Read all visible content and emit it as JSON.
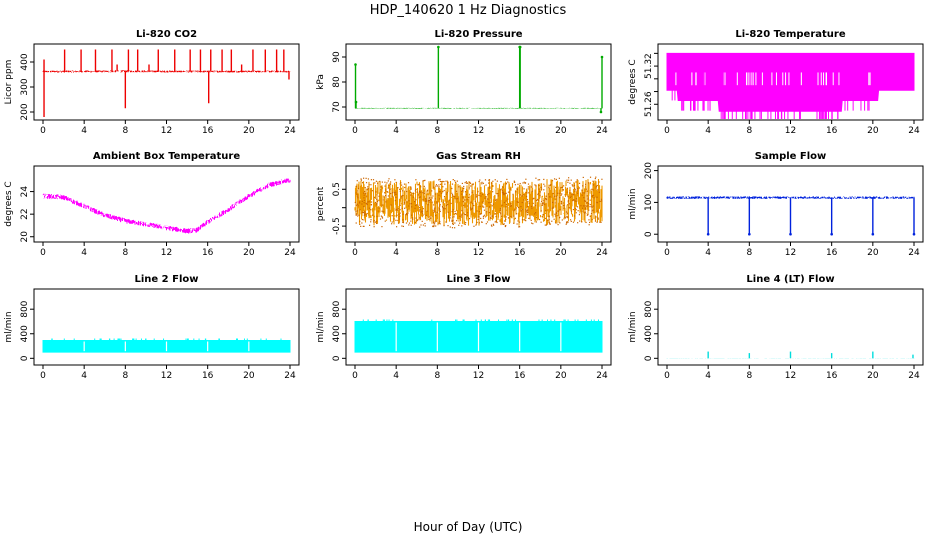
{
  "figure": {
    "title": "HDP_140620  1 Hz Diagnostics",
    "xlabel": "Hour of Day (UTC)"
  },
  "chart_data": [
    {
      "id": "co2",
      "type": "line",
      "title": "Li-820 CO2",
      "ylabel": "Licor ppm",
      "color": "#ee0000",
      "xlim": [
        0,
        24
      ],
      "ylim": [
        180,
        460
      ],
      "xticks": [
        0,
        4,
        8,
        12,
        16,
        20,
        24
      ],
      "yticks": [
        200,
        300,
        400
      ],
      "ytick_labels": [
        "200",
        "300",
        "400"
      ],
      "baseline": [
        [
          0,
          362
        ],
        [
          4,
          362
        ],
        [
          8,
          363
        ],
        [
          12,
          362
        ],
        [
          16,
          362
        ],
        [
          20,
          362
        ],
        [
          24,
          362
        ]
      ],
      "noise": 8,
      "spikes": [
        [
          0.1,
          180
        ],
        [
          0.1,
          410
        ],
        [
          2.1,
          450
        ],
        [
          3.7,
          450
        ],
        [
          5.1,
          450
        ],
        [
          6.7,
          450
        ],
        [
          7.2,
          390
        ],
        [
          8.0,
          215
        ],
        [
          8.3,
          450
        ],
        [
          9.2,
          450
        ],
        [
          10.3,
          390
        ],
        [
          11.2,
          450
        ],
        [
          12.8,
          450
        ],
        [
          14.3,
          450
        ],
        [
          15.3,
          450
        ],
        [
          16.1,
          235
        ],
        [
          16.3,
          450
        ],
        [
          17.4,
          450
        ],
        [
          18.3,
          450
        ],
        [
          19.3,
          390
        ],
        [
          20.4,
          450
        ],
        [
          21.6,
          450
        ],
        [
          22.7,
          450
        ],
        [
          23.4,
          450
        ],
        [
          23.9,
          330
        ]
      ]
    },
    {
      "id": "pressure",
      "type": "line",
      "title": "Li-820 Pressure",
      "ylabel": "kPa",
      "color": "#00aa00",
      "xlim": [
        0,
        24
      ],
      "ylim": [
        66,
        94
      ],
      "xticks": [
        0,
        4,
        8,
        12,
        16,
        20,
        24
      ],
      "yticks": [
        70,
        80,
        90
      ],
      "ytick_labels": [
        "70",
        "80",
        "90"
      ],
      "baseline": [
        [
          0,
          69.5
        ],
        [
          24,
          69.5
        ]
      ],
      "noise": 0.3,
      "spikes": [
        [
          0.05,
          87
        ],
        [
          0.1,
          72
        ],
        [
          8.1,
          94
        ],
        [
          16.0,
          94
        ],
        [
          16.05,
          94
        ],
        [
          24.0,
          90
        ],
        [
          23.9,
          68
        ]
      ]
    },
    {
      "id": "licor_temp",
      "type": "band",
      "title": "Li-820 Temperature",
      "ylabel": "degrees C",
      "color": "#ff00ff",
      "xlim": [
        0,
        24
      ],
      "ylim": [
        51.24,
        51.35
      ],
      "xticks": [
        0,
        4,
        8,
        12,
        16,
        20,
        24
      ],
      "yticks": [
        51.26,
        51.28,
        51.3,
        51.32,
        51.34
      ],
      "ytick_labels": [
        "51.26",
        "",
        "",
        "51.32",
        ""
      ],
      "low": [
        [
          0,
          51.282
        ],
        [
          0.8,
          51.282
        ],
        [
          1.0,
          51.266
        ],
        [
          4.5,
          51.266
        ],
        [
          5.0,
          51.249
        ],
        [
          16.5,
          51.249
        ],
        [
          17.0,
          51.266
        ],
        [
          20.3,
          51.266
        ],
        [
          20.5,
          51.282
        ],
        [
          24,
          51.282
        ]
      ],
      "high": [
        [
          0,
          51.34
        ],
        [
          24,
          51.34
        ]
      ],
      "stripes": true
    },
    {
      "id": "ambient_temp",
      "type": "line",
      "title": "Ambient Box Temperature",
      "ylabel": "degrees C",
      "color": "#ff00ff",
      "xlim": [
        0,
        24
      ],
      "ylim": [
        19.8,
        26.0
      ],
      "xticks": [
        0,
        4,
        8,
        12,
        16,
        20,
        24
      ],
      "yticks": [
        20,
        22,
        24
      ],
      "ytick_labels": [
        "20",
        "22",
        "24"
      ],
      "baseline": [
        [
          0,
          23.6
        ],
        [
          2,
          23.5
        ],
        [
          4,
          22.7
        ],
        [
          6,
          21.9
        ],
        [
          8,
          21.4
        ],
        [
          10,
          21.1
        ],
        [
          12,
          20.8
        ],
        [
          14,
          20.5
        ],
        [
          15,
          20.6
        ],
        [
          16,
          21.3
        ],
        [
          18,
          22.4
        ],
        [
          20,
          23.6
        ],
        [
          22,
          24.6
        ],
        [
          24,
          25.0
        ]
      ],
      "noise": 0.45,
      "spikes": []
    },
    {
      "id": "rh",
      "type": "line",
      "title": "Gas Stream RH",
      "ylabel": "percent",
      "color": "#ee9900",
      "dots": true,
      "xlim": [
        0,
        24
      ],
      "ylim": [
        -0.85,
        1.05
      ],
      "xticks": [
        0,
        4,
        8,
        12,
        16,
        20,
        24
      ],
      "yticks": [
        -0.5,
        0.0,
        0.5
      ],
      "ytick_labels": [
        "-0.5",
        "",
        "0.5"
      ],
      "baseline": [
        [
          0,
          0.15
        ],
        [
          12,
          0.1
        ],
        [
          24,
          0.2
        ]
      ],
      "noise": 1.25,
      "spikes": []
    },
    {
      "id": "sample_flow",
      "type": "line",
      "title": "Sample Flow",
      "ylabel": "ml/min",
      "color": "#0022dd",
      "xlim": [
        0,
        24
      ],
      "ylim": [
        -15,
        205
      ],
      "xticks": [
        0,
        4,
        8,
        12,
        16,
        20,
        24
      ],
      "yticks": [
        0,
        100,
        200
      ],
      "ytick_labels": [
        "0",
        "100",
        "200"
      ],
      "baseline": [
        [
          0,
          115
        ],
        [
          24,
          115
        ]
      ],
      "noise": 8,
      "spikes": [
        [
          4.0,
          0
        ],
        [
          8.0,
          0
        ],
        [
          12.0,
          0
        ],
        [
          16.0,
          0
        ],
        [
          20.0,
          0
        ],
        [
          24.0,
          0
        ]
      ]
    },
    {
      "id": "line2",
      "type": "band",
      "title": "Line 2 Flow",
      "ylabel": "ml/min",
      "color": "#00ffff",
      "xlim": [
        0,
        24
      ],
      "ylim": [
        -60,
        1080
      ],
      "xticks": [
        0,
        4,
        8,
        12,
        16,
        20,
        24
      ],
      "yticks": [
        0,
        400,
        800
      ],
      "ytick_labels": [
        "0",
        "400",
        "800"
      ],
      "low": [
        [
          0,
          100
        ],
        [
          24,
          100
        ]
      ],
      "high": [
        [
          0,
          290
        ],
        [
          24,
          290
        ]
      ],
      "gaps": [
        4,
        8,
        12,
        16,
        20
      ]
    },
    {
      "id": "line3",
      "type": "band",
      "title": "Line 3 Flow",
      "ylabel": "ml/min",
      "color": "#00ffff",
      "xlim": [
        0,
        24
      ],
      "ylim": [
        -60,
        1080
      ],
      "xticks": [
        0,
        4,
        8,
        12,
        16,
        20,
        24
      ],
      "yticks": [
        0,
        400,
        800
      ],
      "ytick_labels": [
        "0",
        "400",
        "800"
      ],
      "low": [
        [
          0,
          100
        ],
        [
          24,
          100
        ]
      ],
      "high": [
        [
          0,
          600
        ],
        [
          24,
          600
        ]
      ],
      "gaps": [
        4,
        8,
        12,
        16,
        20
      ]
    },
    {
      "id": "line4",
      "type": "line",
      "title": "Line 4 (LT) Flow",
      "ylabel": "ml/min",
      "color": "#00dddd",
      "xlim": [
        0,
        24
      ],
      "ylim": [
        -60,
        1080
      ],
      "xticks": [
        0,
        4,
        8,
        12,
        16,
        20,
        24
      ],
      "yticks": [
        0,
        400,
        800
      ],
      "ytick_labels": [
        "0",
        "400",
        "800"
      ],
      "baseline": [
        [
          0,
          0
        ],
        [
          24,
          0
        ]
      ],
      "noise": 3,
      "spikes": [
        [
          4.0,
          110
        ],
        [
          8.0,
          85
        ],
        [
          12.0,
          110
        ],
        [
          16.0,
          85
        ],
        [
          20.0,
          110
        ],
        [
          23.9,
          60
        ]
      ]
    }
  ]
}
